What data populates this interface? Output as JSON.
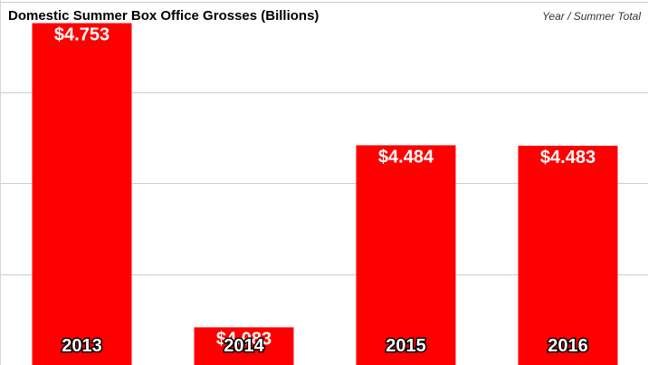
{
  "chart_data": {
    "type": "bar",
    "title": "Domestic Summer Box Office Grosses (Billions)",
    "subtitle": "Year / Summer Total",
    "categories": [
      "2013",
      "2014",
      "2015",
      "2016"
    ],
    "values": [
      4.753,
      4.083,
      4.484,
      4.483
    ],
    "value_labels": [
      "$4.753",
      "$4.083",
      "$4.484",
      "$4.483"
    ],
    "ylim": [
      4.0,
      4.8
    ],
    "grid": true,
    "legend": "none",
    "bar_color": "#ff0000"
  }
}
